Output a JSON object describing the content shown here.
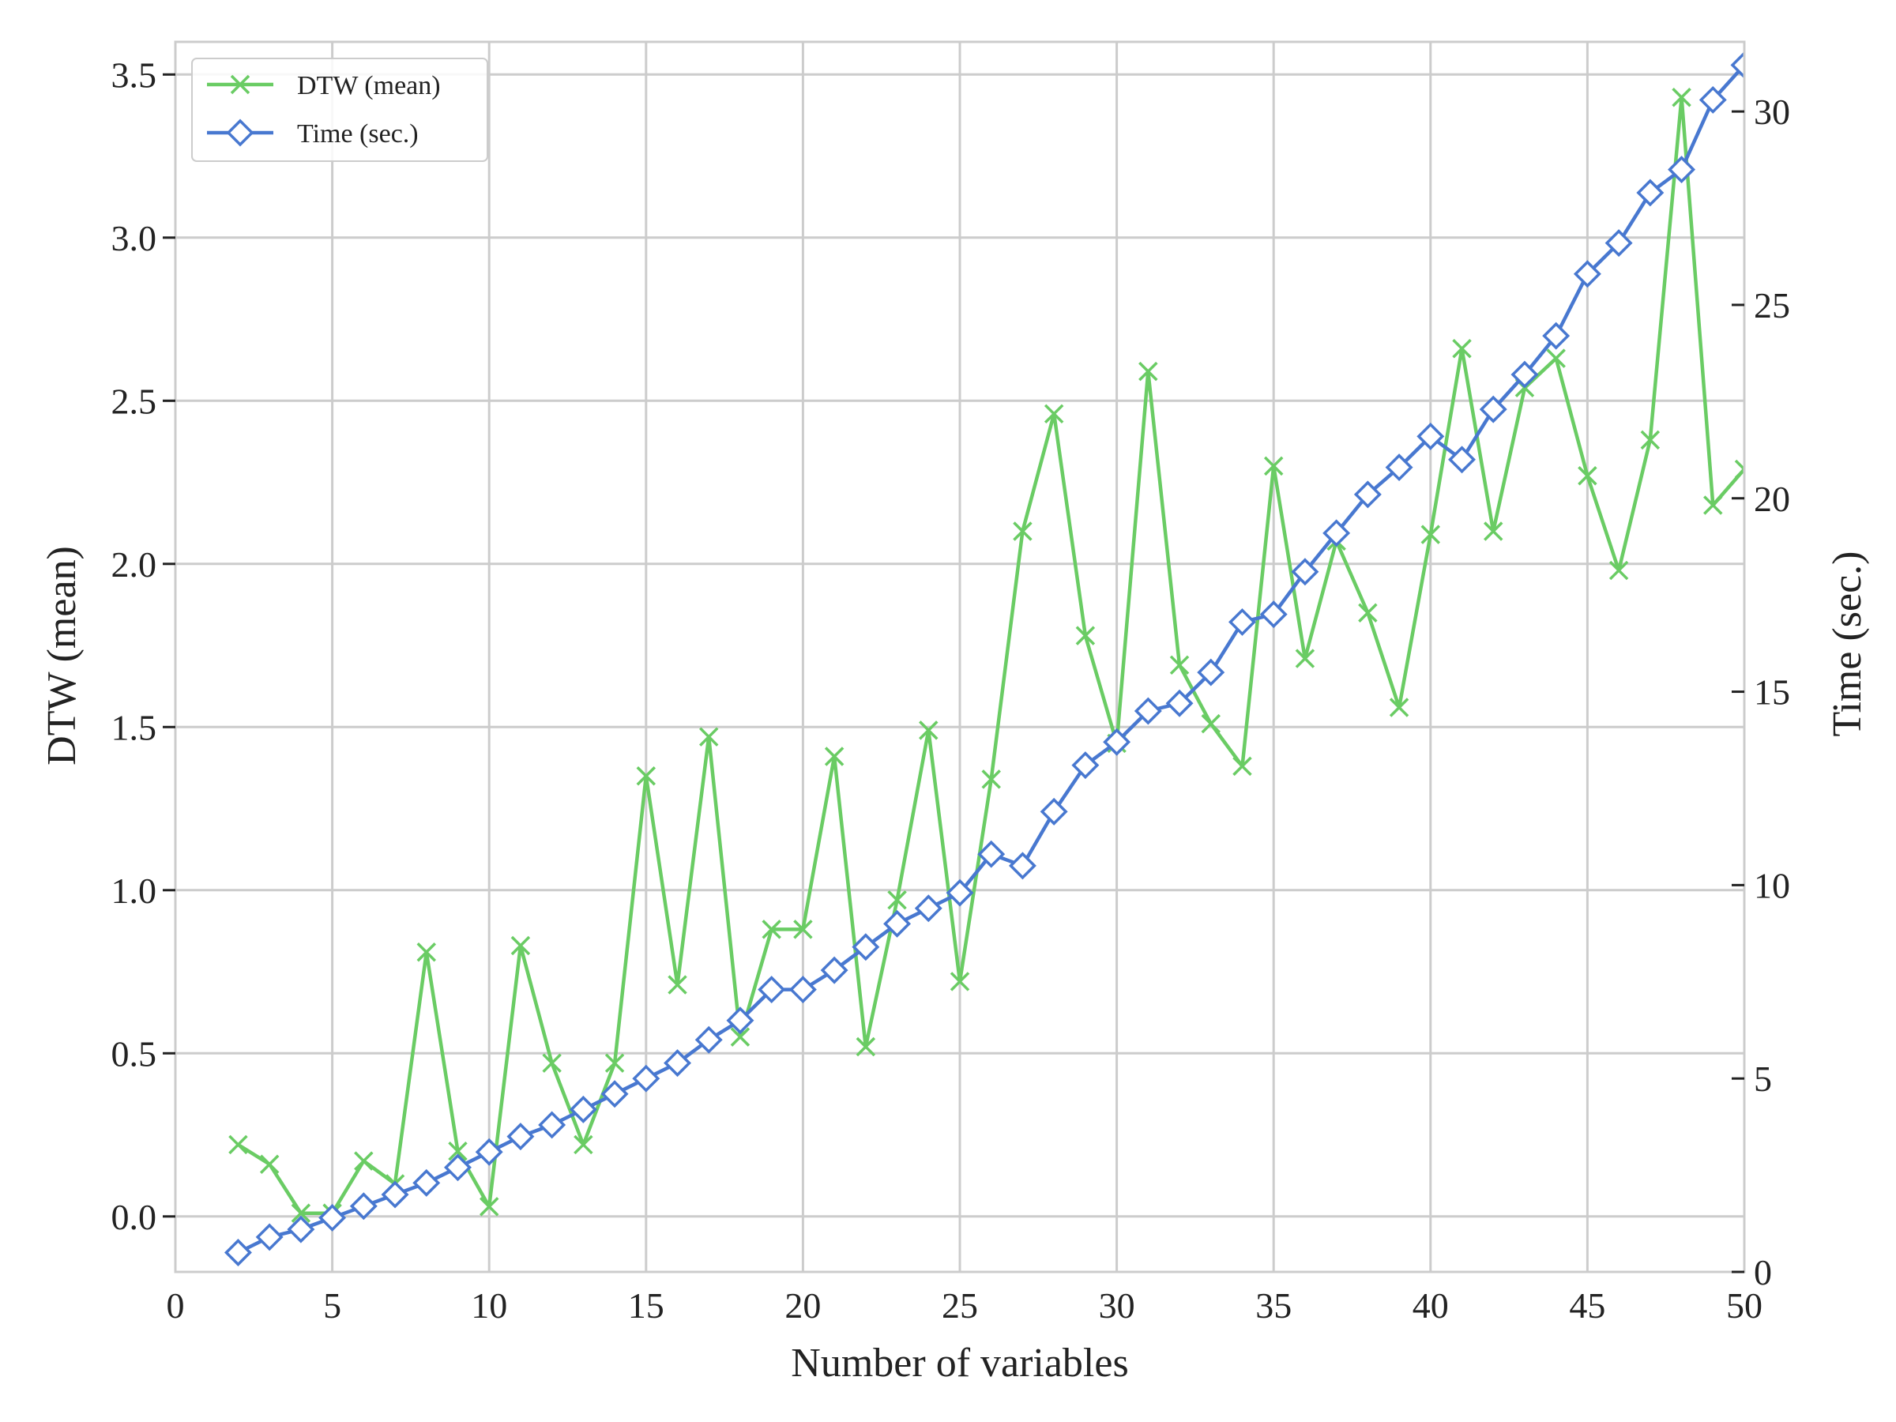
{
  "chart_data": {
    "type": "line",
    "xlabel": "Number of variables",
    "ylabel_left": "DTW (mean)",
    "ylabel_right": "Time (sec.)",
    "xlim": [
      0,
      50
    ],
    "ylim_left": [
      -0.17,
      3.6
    ],
    "ylim_right": [
      0,
      31.8
    ],
    "xticks": [
      0,
      5,
      10,
      15,
      20,
      25,
      30,
      35,
      40,
      45,
      50
    ],
    "yticks_left": [
      0.0,
      0.5,
      1.0,
      1.5,
      2.0,
      2.5,
      3.0,
      3.5
    ],
    "yticks_right": [
      0,
      5,
      10,
      15,
      20,
      25,
      30
    ],
    "grid": true,
    "legend_position": "top-left",
    "x": [
      2,
      3,
      4,
      5,
      6,
      7,
      8,
      9,
      10,
      11,
      12,
      13,
      14,
      15,
      16,
      17,
      18,
      19,
      20,
      21,
      22,
      23,
      24,
      25,
      26,
      27,
      28,
      29,
      30,
      31,
      32,
      33,
      34,
      35,
      36,
      37,
      38,
      39,
      40,
      41,
      42,
      43,
      44,
      45,
      46,
      47,
      48,
      49,
      50
    ],
    "series": [
      {
        "name": "DTW (mean)",
        "axis": "left",
        "color": "#6acc64",
        "marker": "x",
        "values": [
          0.22,
          0.16,
          0.01,
          0.01,
          0.17,
          0.1,
          0.81,
          0.2,
          0.03,
          0.83,
          0.47,
          0.22,
          0.47,
          1.35,
          0.71,
          1.47,
          0.55,
          0.88,
          0.88,
          1.41,
          0.52,
          0.97,
          1.49,
          0.72,
          1.34,
          2.1,
          2.46,
          1.78,
          1.45,
          2.59,
          1.69,
          1.51,
          1.38,
          2.3,
          1.71,
          2.07,
          1.85,
          1.56,
          2.09,
          2.66,
          2.1,
          2.54,
          2.63,
          2.27,
          1.98,
          2.38,
          3.43,
          2.18,
          2.29
        ]
      },
      {
        "name": "Time (sec.)",
        "axis": "right",
        "color": "#4878d0",
        "marker": "diamond",
        "values": [
          0.5,
          0.9,
          1.1,
          1.4,
          1.7,
          2.0,
          2.3,
          2.7,
          3.1,
          3.5,
          3.8,
          4.2,
          4.6,
          5.0,
          5.4,
          6.0,
          6.5,
          7.3,
          7.3,
          7.8,
          8.4,
          9.0,
          9.4,
          9.8,
          10.8,
          10.5,
          11.9,
          13.1,
          13.7,
          14.5,
          14.7,
          15.5,
          16.8,
          17.0,
          18.1,
          19.1,
          20.1,
          20.8,
          21.6,
          21.0,
          22.3,
          23.2,
          24.2,
          25.8,
          26.6,
          27.9,
          28.5,
          30.3,
          31.2
        ]
      }
    ]
  }
}
